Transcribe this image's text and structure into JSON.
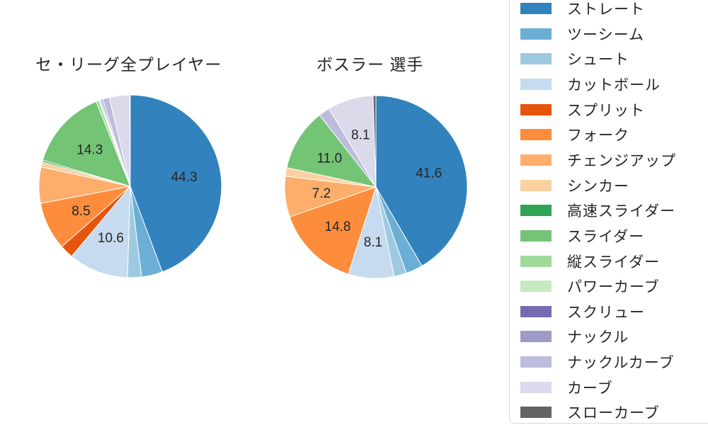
{
  "page": {
    "background": "#ffffff"
  },
  "titles": {
    "left": "セ・リーグ全プレイヤー",
    "right": "ボスラー 選手"
  },
  "legend": {
    "border_color": "#d9d9d9",
    "items": [
      {
        "label": "ストレート",
        "color": "#3182bd"
      },
      {
        "label": "ツーシーム",
        "color": "#6baed6"
      },
      {
        "label": "シュート",
        "color": "#9ecae1"
      },
      {
        "label": "カットボール",
        "color": "#c6dbef"
      },
      {
        "label": "スプリット",
        "color": "#e6550d"
      },
      {
        "label": "フォーク",
        "color": "#fd8d3c"
      },
      {
        "label": "チェンジアップ",
        "color": "#fdae6b"
      },
      {
        "label": "シンカー",
        "color": "#fdd0a2"
      },
      {
        "label": "高速スライダー",
        "color": "#31a354"
      },
      {
        "label": "スライダー",
        "color": "#74c476"
      },
      {
        "label": "縦スライダー",
        "color": "#a1d99b"
      },
      {
        "label": "パワーカーブ",
        "color": "#c7e9c0"
      },
      {
        "label": "スクリュー",
        "color": "#756bb1"
      },
      {
        "label": "ナックル",
        "color": "#9e9ac8"
      },
      {
        "label": "ナックルカーブ",
        "color": "#bcbddc"
      },
      {
        "label": "カーブ",
        "color": "#dadaeb"
      },
      {
        "label": "スローカーブ",
        "color": "#636363"
      }
    ]
  },
  "chart_data": [
    {
      "type": "pie",
      "title": "セ・リーグ全プレイヤー",
      "unit": "percent",
      "start_angle": "top",
      "direction": "clockwise",
      "slices": [
        {
          "label": "ストレート",
          "value": 44.3,
          "labeled": true
        },
        {
          "label": "ツーシーム",
          "value": 3.7,
          "labeled": false
        },
        {
          "label": "シュート",
          "value": 2.5,
          "labeled": false
        },
        {
          "label": "カットボール",
          "value": 10.6,
          "labeled": true
        },
        {
          "label": "スプリット",
          "value": 2.4,
          "labeled": false
        },
        {
          "label": "フォーク",
          "value": 8.5,
          "labeled": true
        },
        {
          "label": "チェンジアップ",
          "value": 6.4,
          "labeled": false
        },
        {
          "label": "シンカー",
          "value": 0.9,
          "labeled": false
        },
        {
          "label": "高速スライダー",
          "value": 0.3,
          "labeled": false
        },
        {
          "label": "スライダー",
          "value": 14.3,
          "labeled": true
        },
        {
          "label": "縦スライダー",
          "value": 0.5,
          "labeled": false
        },
        {
          "label": "パワーカーブ",
          "value": 0.2,
          "labeled": false
        },
        {
          "label": "スクリュー",
          "value": 0.2,
          "labeled": false
        },
        {
          "label": "ナックル",
          "value": 0.3,
          "labeled": false
        },
        {
          "label": "ナックルカーブ",
          "value": 1.2,
          "labeled": false
        },
        {
          "label": "カーブ",
          "value": 3.6,
          "labeled": false
        },
        {
          "label": "スローカーブ",
          "value": 0.1,
          "labeled": false
        }
      ]
    },
    {
      "type": "pie",
      "title": "ボスラー 選手",
      "unit": "percent",
      "start_angle": "top",
      "direction": "clockwise",
      "slices": [
        {
          "label": "ストレート",
          "value": 41.6,
          "labeled": true
        },
        {
          "label": "ツーシーム",
          "value": 3.0,
          "labeled": false
        },
        {
          "label": "シュート",
          "value": 2.2,
          "labeled": false
        },
        {
          "label": "カットボール",
          "value": 8.1,
          "labeled": true
        },
        {
          "label": "スプリット",
          "value": 0,
          "labeled": false
        },
        {
          "label": "フォーク",
          "value": 14.8,
          "labeled": true
        },
        {
          "label": "チェンジアップ",
          "value": 7.2,
          "labeled": true
        },
        {
          "label": "シンカー",
          "value": 1.5,
          "labeled": false
        },
        {
          "label": "高速スライダー",
          "value": 0,
          "labeled": false
        },
        {
          "label": "スライダー",
          "value": 11.0,
          "labeled": true
        },
        {
          "label": "縦スライダー",
          "value": 0,
          "labeled": false
        },
        {
          "label": "パワーカーブ",
          "value": 0,
          "labeled": false
        },
        {
          "label": "スクリュー",
          "value": 0,
          "labeled": false
        },
        {
          "label": "ナックル",
          "value": 0,
          "labeled": false
        },
        {
          "label": "ナックルカーブ",
          "value": 2.0,
          "labeled": false
        },
        {
          "label": "カーブ",
          "value": 8.1,
          "labeled": true
        },
        {
          "label": "スローカーブ",
          "value": 0.5,
          "labeled": false
        }
      ]
    }
  ]
}
